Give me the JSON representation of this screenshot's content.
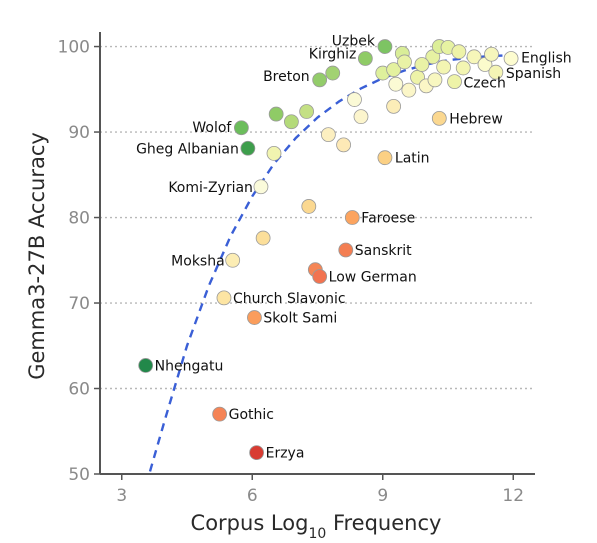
{
  "chart_data": {
    "type": "scatter",
    "xlabel": "Corpus Log10 Frequency",
    "ylabel": "Gemma3-27B Accuracy",
    "xlim": [
      2.5,
      12.5
    ],
    "ylim": [
      50,
      101
    ],
    "xticks": [
      3,
      6,
      9,
      12
    ],
    "yticks": [
      50,
      60,
      70,
      80,
      90,
      100
    ],
    "grid": "horizontal dotted",
    "colormap": "accuracy residual: green (above trend) to yellow to red (below trend)",
    "trend_line": {
      "style": "dashed",
      "color": "#3a5fd6",
      "points": [
        [
          3.65,
          50.3
        ],
        [
          4.0,
          56.5
        ],
        [
          4.5,
          65.0
        ],
        [
          5.0,
          72.0
        ],
        [
          5.5,
          77.8
        ],
        [
          6.0,
          82.5
        ],
        [
          6.5,
          86.3
        ],
        [
          7.0,
          89.3
        ],
        [
          7.5,
          91.7
        ],
        [
          8.0,
          93.6
        ],
        [
          8.5,
          95.1
        ],
        [
          9.0,
          96.3
        ],
        [
          9.5,
          97.2
        ],
        [
          10.0,
          97.9
        ],
        [
          10.5,
          98.4
        ],
        [
          11.0,
          98.7
        ],
        [
          11.5,
          98.9
        ],
        [
          12.0,
          99.0
        ]
      ]
    },
    "points": [
      {
        "label": "Uzbek",
        "x": 9.05,
        "y": 100.0,
        "color": "#7dc463"
      },
      {
        "label": "Kirghiz",
        "x": 8.6,
        "y": 98.6,
        "color": "#8fcb66"
      },
      {
        "label": "Breton",
        "x": 7.55,
        "y": 96.1,
        "color": "#93cc6a"
      },
      {
        "label": "",
        "x": 7.85,
        "y": 96.9,
        "color": "#a2d272"
      },
      {
        "label": "English",
        "x": 11.95,
        "y": 98.6,
        "color": "#fdfcd0"
      },
      {
        "label": "Spanish",
        "x": 11.6,
        "y": 97.0,
        "color": "#f5f5b5"
      },
      {
        "label": "Czech",
        "x": 10.65,
        "y": 95.9,
        "color": "#eef3a8"
      },
      {
        "label": "Hebrew",
        "x": 10.3,
        "y": 91.6,
        "color": "#fbd890"
      },
      {
        "label": "Wolof",
        "x": 5.75,
        "y": 90.5,
        "color": "#6cbd5c"
      },
      {
        "label": "Gheg Albanian",
        "x": 5.9,
        "y": 88.1,
        "color": "#3e9e4c"
      },
      {
        "label": "Latin",
        "x": 9.05,
        "y": 87.0,
        "color": "#fbd084"
      },
      {
        "label": "Komi-Zyrian",
        "x": 6.2,
        "y": 83.6,
        "color": "#fbfbdb"
      },
      {
        "label": "Faroese",
        "x": 8.3,
        "y": 80.0,
        "color": "#fca45f"
      },
      {
        "label": "Sanskrit",
        "x": 8.15,
        "y": 76.2,
        "color": "#f37e52"
      },
      {
        "label": "Moksha",
        "x": 5.55,
        "y": 75.0,
        "color": "#fcedb4"
      },
      {
        "label": "Low German",
        "x": 7.55,
        "y": 73.1,
        "color": "#f27350"
      },
      {
        "label": "Church Slavonic",
        "x": 5.35,
        "y": 70.6,
        "color": "#fde5a3"
      },
      {
        "label": "Skolt Sami",
        "x": 6.05,
        "y": 68.3,
        "color": "#fa9d5c"
      },
      {
        "label": "Nhengatu",
        "x": 3.55,
        "y": 62.7,
        "color": "#22884a"
      },
      {
        "label": "Gothic",
        "x": 5.25,
        "y": 57.0,
        "color": "#f58456"
      },
      {
        "label": "Erzya",
        "x": 6.1,
        "y": 52.5,
        "color": "#d83c32"
      },
      {
        "label": "",
        "x": 7.45,
        "y": 73.9,
        "color": "#f58555"
      },
      {
        "label": "",
        "x": 6.25,
        "y": 77.6,
        "color": "#fcdf9a"
      },
      {
        "label": "",
        "x": 7.3,
        "y": 81.3,
        "color": "#fbd890"
      },
      {
        "label": "",
        "x": 6.55,
        "y": 92.1,
        "color": "#8fcb66"
      },
      {
        "label": "",
        "x": 6.9,
        "y": 91.2,
        "color": "#b4da7a"
      },
      {
        "label": "",
        "x": 7.25,
        "y": 92.4,
        "color": "#c4e084"
      },
      {
        "label": "",
        "x": 6.5,
        "y": 87.5,
        "color": "#f1f4b0"
      },
      {
        "label": "",
        "x": 7.75,
        "y": 89.7,
        "color": "#fcefc0"
      },
      {
        "label": "",
        "x": 8.1,
        "y": 88.5,
        "color": "#fde9b6"
      },
      {
        "label": "",
        "x": 8.35,
        "y": 93.8,
        "color": "#fbfad6"
      },
      {
        "label": "",
        "x": 8.5,
        "y": 91.8,
        "color": "#fcf5cd"
      },
      {
        "label": "",
        "x": 9.25,
        "y": 93.0,
        "color": "#fcedb8"
      },
      {
        "label": "",
        "x": 9.0,
        "y": 96.9,
        "color": "#def09c"
      },
      {
        "label": "",
        "x": 9.25,
        "y": 97.3,
        "color": "#e4f19f"
      },
      {
        "label": "",
        "x": 9.45,
        "y": 99.2,
        "color": "#d9ed98"
      },
      {
        "label": "",
        "x": 9.5,
        "y": 98.2,
        "color": "#e9f2a6"
      },
      {
        "label": "",
        "x": 9.3,
        "y": 95.6,
        "color": "#fbfad4"
      },
      {
        "label": "",
        "x": 9.6,
        "y": 94.9,
        "color": "#fbf6c8"
      },
      {
        "label": "",
        "x": 9.8,
        "y": 96.4,
        "color": "#eef3a8"
      },
      {
        "label": "",
        "x": 10.0,
        "y": 95.4,
        "color": "#fbf6c6"
      },
      {
        "label": "",
        "x": 10.15,
        "y": 98.8,
        "color": "#e6f2a2"
      },
      {
        "label": "",
        "x": 10.3,
        "y": 100.0,
        "color": "#dcee98"
      },
      {
        "label": "",
        "x": 10.5,
        "y": 99.9,
        "color": "#e6f2a2"
      },
      {
        "label": "",
        "x": 10.4,
        "y": 97.6,
        "color": "#f3f5b2"
      },
      {
        "label": "",
        "x": 10.75,
        "y": 99.4,
        "color": "#eef3a8"
      },
      {
        "label": "",
        "x": 10.85,
        "y": 97.5,
        "color": "#f3f5b2"
      },
      {
        "label": "",
        "x": 11.1,
        "y": 98.8,
        "color": "#f6f6b9"
      },
      {
        "label": "",
        "x": 11.35,
        "y": 97.9,
        "color": "#fbfbcc"
      },
      {
        "label": "",
        "x": 11.5,
        "y": 99.1,
        "color": "#f6f6bc"
      },
      {
        "label": "",
        "x": 10.2,
        "y": 96.1,
        "color": "#f8f7c0"
      },
      {
        "label": "",
        "x": 9.9,
        "y": 97.9,
        "color": "#e9f2a6"
      }
    ]
  }
}
